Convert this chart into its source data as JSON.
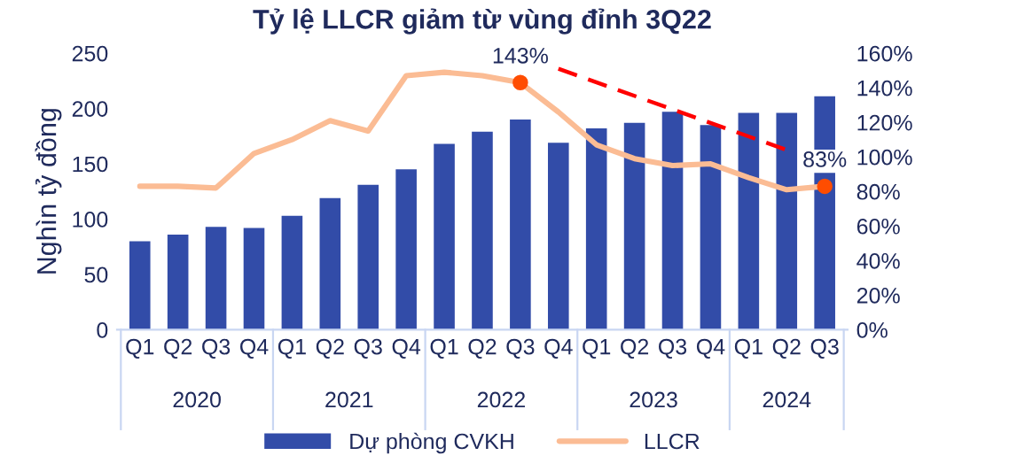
{
  "chart_data": {
    "type": "bar",
    "title": "Tỷ lệ LLCR giảm từ vùng đỉnh 3Q22",
    "ylabel": "Nghìn tỷ đồng",
    "categories": [
      "Q1",
      "Q2",
      "Q3",
      "Q4",
      "Q1",
      "Q2",
      "Q3",
      "Q4",
      "Q1",
      "Q2",
      "Q3",
      "Q4",
      "Q1",
      "Q2",
      "Q3",
      "Q4",
      "Q1",
      "Q2",
      "Q3"
    ],
    "annotations": [
      "2020",
      "2021",
      "2022",
      "2023",
      "2024"
    ],
    "series": [
      {
        "name": "Dự phòng CVKH",
        "color": "#324ca8",
        "values": [
          80,
          86,
          93,
          92,
          103,
          119,
          131,
          145,
          168,
          179,
          190,
          169,
          182,
          187,
          197,
          185,
          196,
          196,
          211
        ]
      },
      {
        "name": "LLCR",
        "type": "line",
        "axis": "y2",
        "color": "#fbbc94",
        "values": [
          83,
          83,
          82,
          102,
          110,
          121,
          115,
          147,
          149,
          147,
          143,
          126,
          107,
          99,
          95,
          96,
          88,
          81,
          83
        ]
      },
      {
        "type": "scatter",
        "axis": "y2",
        "color": "#ff4d00",
        "values": [
          null,
          null,
          null,
          null,
          null,
          null,
          null,
          null,
          null,
          null,
          143,
          null,
          null,
          null,
          null,
          null,
          null,
          null,
          83
        ],
        "value_labels": [
          null,
          null,
          null,
          null,
          null,
          null,
          null,
          null,
          null,
          null,
          "143%",
          null,
          null,
          null,
          null,
          null,
          null,
          null,
          "83%"
        ]
      },
      {
        "type": "line",
        "axis": "y2",
        "color": "#ff0000",
        "line_style": "dashed",
        "values": [
          null,
          null,
          null,
          null,
          null,
          null,
          null,
          null,
          null,
          null,
          null,
          151,
          null,
          null,
          null,
          null,
          null,
          104,
          null
        ]
      }
    ],
    "ylim": [
      0,
      250
    ],
    "yticks": [
      0,
      50,
      100,
      150,
      200,
      250
    ],
    "y2lim": [
      0,
      160
    ],
    "y2ticks": [
      {
        "value": 0,
        "label": "0%"
      },
      {
        "value": 20,
        "label": "20%"
      },
      {
        "value": 40,
        "label": "40%"
      },
      {
        "value": 60,
        "label": "60%"
      },
      {
        "value": 80,
        "label": "80%"
      },
      {
        "value": 100,
        "label": "100%"
      },
      {
        "value": 120,
        "label": "120%"
      },
      {
        "value": 140,
        "label": "140%"
      },
      {
        "value": 160,
        "label": "160%"
      }
    ],
    "legend": "bottom",
    "grid": false
  }
}
